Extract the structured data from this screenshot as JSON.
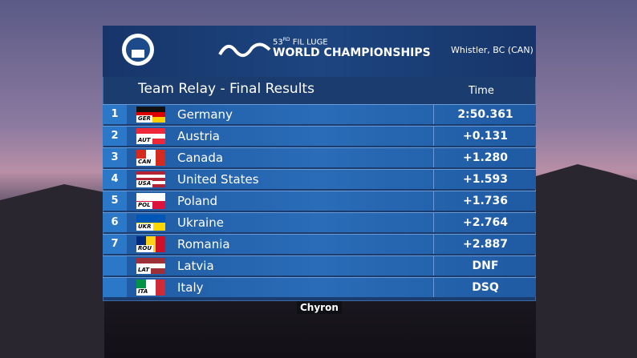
{
  "header": {
    "edition": "53",
    "edition_suffix": "RD",
    "event_line1": "FIL LUGE",
    "event_line2": "WORLD CHAMPIONSHIPS",
    "location": "Whistler, BC (CAN)"
  },
  "table": {
    "title": "Team Relay - Final Results",
    "time_header": "Time",
    "rows": [
      {
        "rank": "1",
        "code": "GER",
        "name": "Germany",
        "time": "2:50.361",
        "flag": {
          "dir": "h",
          "colors": [
            "#111111",
            "#dd0000",
            "#ffce00"
          ]
        }
      },
      {
        "rank": "2",
        "code": "AUT",
        "name": "Austria",
        "time": "+0.131",
        "flag": {
          "dir": "h",
          "colors": [
            "#ed2939",
            "#ffffff",
            "#ed2939"
          ]
        }
      },
      {
        "rank": "3",
        "code": "CAN",
        "name": "Canada",
        "time": "+1.280",
        "flag": {
          "dir": "v",
          "colors": [
            "#d52b1e",
            "#ffffff",
            "#d52b1e"
          ]
        }
      },
      {
        "rank": "4",
        "code": "USA",
        "name": "United States",
        "time": "+1.593",
        "flag": {
          "dir": "h",
          "colors": [
            "#b22234",
            "#ffffff",
            "#b22234",
            "#ffffff",
            "#b22234"
          ]
        }
      },
      {
        "rank": "5",
        "code": "POL",
        "name": "Poland",
        "time": "+1.736",
        "flag": {
          "dir": "h",
          "colors": [
            "#ffffff",
            "#dc143c"
          ]
        }
      },
      {
        "rank": "6",
        "code": "UKR",
        "name": "Ukraine",
        "time": "+2.764",
        "flag": {
          "dir": "h",
          "colors": [
            "#0057b7",
            "#ffd700"
          ]
        }
      },
      {
        "rank": "7",
        "code": "ROU",
        "name": "Romania",
        "time": "+2.887",
        "flag": {
          "dir": "v",
          "colors": [
            "#002b7f",
            "#fcd116",
            "#ce1126"
          ]
        }
      },
      {
        "rank": null,
        "code": "LAT",
        "name": "Latvia",
        "time": "DNF",
        "flag": {
          "dir": "h",
          "colors": [
            "#9e3039",
            "#ffffff",
            "#9e3039"
          ]
        }
      },
      {
        "rank": null,
        "code": "ITA",
        "name": "Italy",
        "time": "DSQ",
        "flag": {
          "dir": "v",
          "colors": [
            "#009246",
            "#ffffff",
            "#ce2b37"
          ]
        }
      }
    ]
  },
  "watermark": "Chyron"
}
